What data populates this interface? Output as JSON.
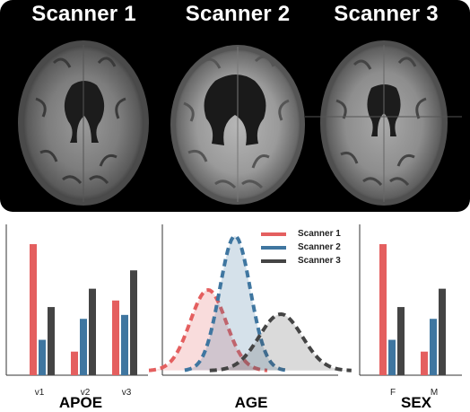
{
  "scanners": [
    {
      "title": "Scanner 1"
    },
    {
      "title": "Scanner 2"
    },
    {
      "title": "Scanner 3"
    }
  ],
  "colors": {
    "scanner1": "#e45f5f",
    "scanner2": "#3f76a0",
    "scanner3": "#444444",
    "panel_bg": "#000000"
  },
  "apoe": {
    "title": "APOE",
    "ticks": [
      "v1",
      "v2",
      "v3"
    ],
    "chart_data": {
      "type": "bar",
      "categories": [
        "v1",
        "v2",
        "v3"
      ],
      "series": [
        {
          "name": "Scanner 1",
          "values": [
            1.0,
            0.18,
            0.57
          ]
        },
        {
          "name": "Scanner 2",
          "values": [
            0.27,
            0.43,
            0.46
          ]
        },
        {
          "name": "Scanner 3",
          "values": [
            0.52,
            0.66,
            0.8
          ]
        }
      ]
    }
  },
  "age": {
    "title": "AGE",
    "legend": [
      "Scanner 1",
      "Scanner 2",
      "Scanner 3"
    ],
    "chart_data": {
      "type": "area",
      "series": [
        {
          "name": "Scanner 1",
          "peak": 0.6
        },
        {
          "name": "Scanner 2",
          "peak": 1.0
        },
        {
          "name": "Scanner 3",
          "peak": 0.42
        }
      ]
    }
  },
  "sex": {
    "title": "SEX",
    "ticks": [
      "F",
      "M"
    ],
    "chart_data": {
      "type": "bar",
      "categories": [
        "F",
        "M"
      ],
      "series": [
        {
          "name": "Scanner 1",
          "values": [
            1.0,
            0.18
          ]
        },
        {
          "name": "Scanner 2",
          "values": [
            0.27,
            0.43
          ]
        },
        {
          "name": "Scanner 3",
          "values": [
            0.52,
            0.66
          ]
        }
      ]
    }
  }
}
